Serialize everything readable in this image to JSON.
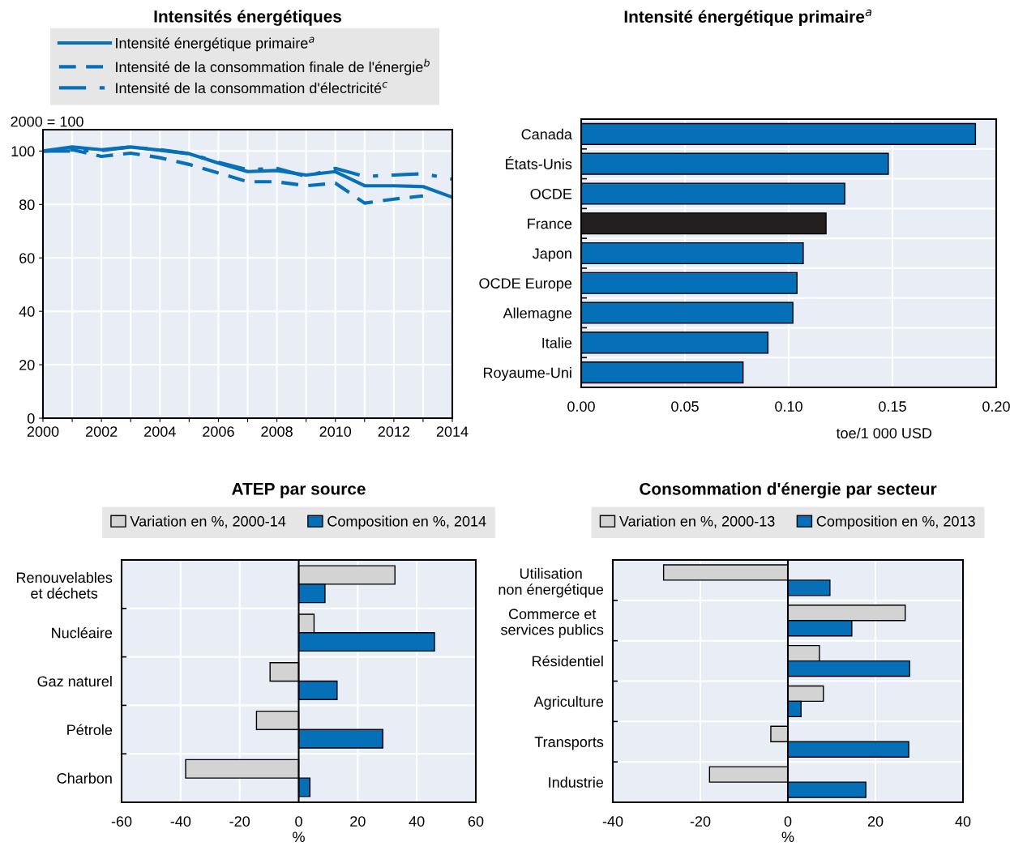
{
  "chart_data": [
    {
      "type": "line",
      "title": "Intensités énergétiques",
      "ylabel": "2000 = 100",
      "legend": "top",
      "grid": true,
      "marker": "none",
      "x": [
        2000,
        2001,
        2002,
        2003,
        2004,
        2005,
        2006,
        2007,
        2008,
        2009,
        2010,
        2011,
        2012,
        2013,
        2014
      ],
      "xlim": [
        2000,
        2014
      ],
      "xticks": [
        2000,
        {
          "value": 2001,
          "label": null
        },
        2002,
        {
          "value": 2003,
          "label": null
        },
        2004,
        {
          "value": 2005,
          "label": null
        },
        2006,
        {
          "value": 2007,
          "label": null
        },
        2008,
        {
          "value": 2009,
          "label": null
        },
        2010,
        {
          "value": 2011,
          "label": null
        },
        2012,
        {
          "value": 2013,
          "label": null
        },
        2014
      ],
      "ylim": [
        0,
        108
      ],
      "yticks": [
        0,
        20,
        40,
        60,
        80,
        100
      ],
      "series": [
        {
          "name": "Intensité énergétique primaire$^{a}$",
          "color": "#0870b8",
          "line_style": "solid",
          "values": [
            100,
            101.5,
            100.5,
            101.5,
            100.3,
            99,
            95.5,
            92.3,
            92.7,
            91,
            92.3,
            87,
            87,
            86.7,
            82.7
          ]
        },
        {
          "name": "Intensité de la consommation finale de l'énergie$^{b}$",
          "color": "#0870b8",
          "line_style": "dashed",
          "values": [
            100,
            100.5,
            98,
            99.2,
            97.5,
            95,
            91.8,
            88.5,
            88.5,
            87,
            88,
            80.5,
            82,
            83.2,
            null
          ]
        },
        {
          "name": "Intensité de la consommation d'électricité$^{c}$",
          "color": "#0870b8",
          "line_style": "dashdot",
          "values": [
            100,
            100,
            100.2,
            101.5,
            100.5,
            99,
            95.8,
            93,
            93.5,
            90.5,
            93.5,
            90.5,
            91,
            91.5,
            89.5
          ]
        }
      ]
    },
    {
      "type": "bar",
      "orientation": "horizontal",
      "title": "Intensité énergétique primaire$^{a}$",
      "xlabel": "toe/1 000 USD",
      "grid": true,
      "categories": [
        "Canada",
        "États-Unis",
        "OCDE",
        "France",
        "Japon",
        "OCDE Europe",
        "Allemagne",
        "Italie",
        "Royaume-Uni"
      ],
      "values": [
        0.19,
        0.148,
        0.127,
        0.118,
        0.107,
        0.104,
        0.102,
        0.09,
        0.078
      ],
      "colors": [
        "#0570b8",
        "#0570b8",
        "#0570b8",
        "#231f20",
        "#0570b8",
        "#0570b8",
        "#0570b8",
        "#0570b8",
        "#0570b8"
      ],
      "xlim": [
        0,
        0.2
      ],
      "xticks": [
        {
          "value": 0,
          "label": "0.00"
        },
        0.05,
        {
          "value": 0.1,
          "label": "0.10"
        },
        0.15,
        {
          "value": 0.2,
          "label": "0.20"
        }
      ]
    },
    {
      "type": "bar",
      "orientation": "horizontal",
      "title": "ATEP par source",
      "xlabel": "%",
      "grid": true,
      "legend": "top",
      "categories": [
        "Renouvelables\net déchets",
        "Nucléaire",
        "Gaz naturel",
        "Pétrole",
        "Charbon"
      ],
      "xlim": [
        -60,
        60
      ],
      "xticks": [
        -60,
        -40,
        -20,
        0,
        20,
        40,
        60
      ],
      "series": [
        {
          "name": "Variation en %, 2000-14",
          "color": "#d3d3d3",
          "values": [
            32.6,
            5.2,
            -9.7,
            -14.3,
            -38.3
          ]
        },
        {
          "name": "Composition en %, 2014",
          "color": "#0570b8",
          "values": [
            8.9,
            46,
            13,
            28.5,
            3.8
          ]
        }
      ]
    },
    {
      "type": "bar",
      "orientation": "horizontal",
      "title": "Consommation d'énergie par secteur",
      "xlabel": "%",
      "grid": true,
      "legend": "top",
      "categories": [
        "Utilisation\nnon énergétique",
        "Commerce et\nservices publics",
        "Résidentiel",
        "Agriculture",
        "Transports",
        "Industrie"
      ],
      "xlim": [
        -40,
        40
      ],
      "xticks": [
        -40,
        -20,
        0,
        20,
        40
      ],
      "series": [
        {
          "name": "Variation en %, 2000-13",
          "color": "#d3d3d3",
          "values": [
            -28.4,
            26.8,
            7.2,
            8.1,
            -3.9,
            -17.9
          ]
        },
        {
          "name": "Composition en %, 2013",
          "color": "#0570b8",
          "values": [
            9.6,
            14.6,
            27.8,
            3.0,
            27.6,
            17.8
          ]
        }
      ]
    }
  ]
}
